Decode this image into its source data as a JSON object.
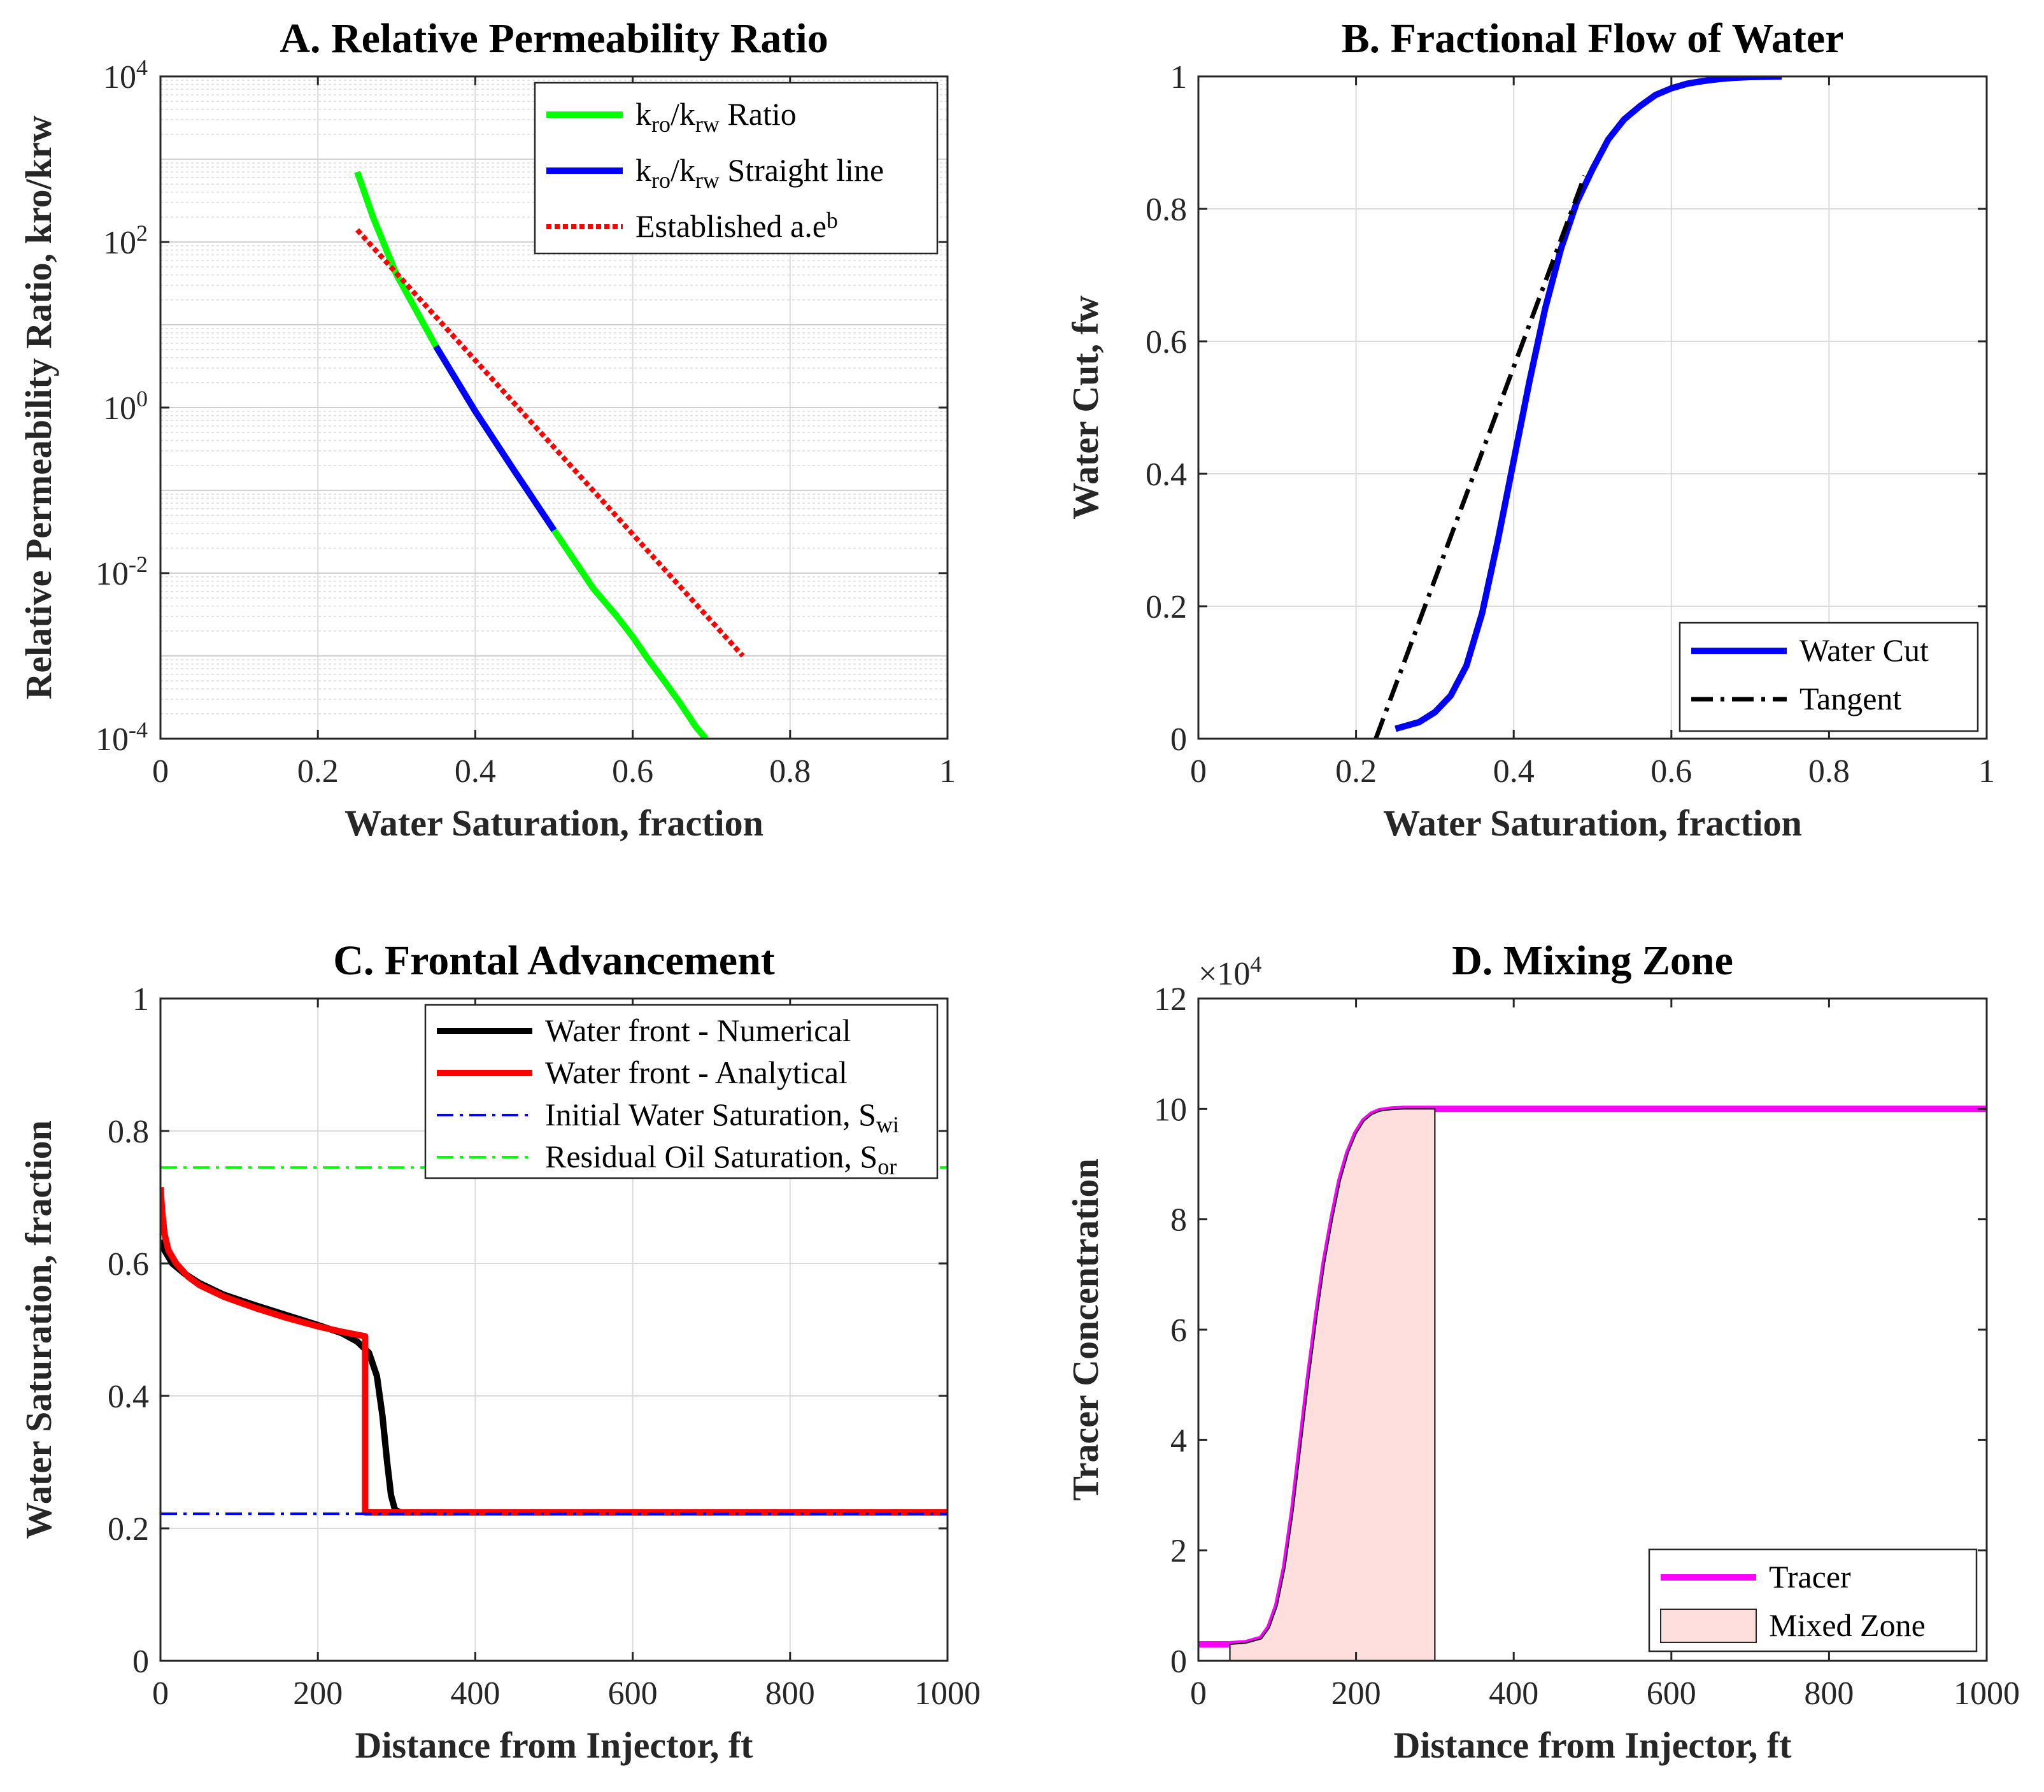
{
  "chart_data": [
    {
      "id": "A",
      "type": "line",
      "title": "A. Relative Permeability Ratio",
      "xlabel": "Water Saturation, fraction",
      "ylabel": "Relative Permeability Ratio, kro/krw",
      "xlim": [
        0,
        1
      ],
      "ylim": [
        0.0001,
        10000
      ],
      "yscale": "log",
      "grid": true,
      "minor_grid": true,
      "legend_position": "top-right",
      "xticks": [
        0,
        0.2,
        0.4,
        0.6,
        0.8,
        1
      ],
      "xtick_labels": [
        "0",
        "0.2",
        "0.4",
        "0.6",
        "0.8",
        "1"
      ],
      "yticks": [
        0.0001,
        0.01,
        1,
        100,
        10000
      ],
      "ytick_labels": [
        {
          "base": "10",
          "exp": "-4"
        },
        {
          "base": "10",
          "exp": "-2"
        },
        {
          "base": "10",
          "exp": "0"
        },
        {
          "base": "10",
          "exp": "2"
        },
        {
          "base": "10",
          "exp": "4"
        }
      ],
      "series": [
        {
          "name": "kro/krw Ratio",
          "legend_parts": [
            {
              "t": "k"
            },
            {
              "t": "ro",
              "sub": true
            },
            {
              "t": "/k"
            },
            {
              "t": "rw",
              "sub": true
            },
            {
              "t": " Ratio"
            }
          ],
          "color": "#00ff00",
          "style": "solid",
          "x": [
            0.25,
            0.27,
            0.3,
            0.35,
            0.4,
            0.45,
            0.5,
            0.55,
            0.58,
            0.6,
            0.62,
            0.64,
            0.66,
            0.68,
            0.693
          ],
          "y": [
            700,
            200,
            40,
            5.5,
            0.9,
            0.17,
            0.033,
            0.0065,
            0.003,
            0.0017,
            0.0009,
            0.0005,
            0.00027,
            0.00014,
            0.0001
          ]
        },
        {
          "name": "kro/krw Straight line",
          "legend_parts": [
            {
              "t": "k"
            },
            {
              "t": "ro",
              "sub": true
            },
            {
              "t": "/k"
            },
            {
              "t": "rw",
              "sub": true
            },
            {
              "t": " Straight line"
            }
          ],
          "color": "#0000ff",
          "style": "solid",
          "x": [
            0.35,
            0.4,
            0.45,
            0.5
          ],
          "y": [
            5.5,
            0.9,
            0.17,
            0.033
          ]
        },
        {
          "name": "Established a.e^b",
          "legend_parts": [
            {
              "t": "Established a.e"
            },
            {
              "t": "b",
              "sup": true
            }
          ],
          "color": "#ff0000",
          "style": "dotted",
          "x": [
            0.25,
            0.74
          ],
          "y": [
            140,
            0.001
          ]
        }
      ]
    },
    {
      "id": "B",
      "type": "line",
      "title": "B. Fractional Flow of Water",
      "xlabel": "Water Saturation, fraction",
      "ylabel": "Water Cut, fw",
      "xlim": [
        0,
        1
      ],
      "ylim": [
        0,
        1
      ],
      "grid": true,
      "legend_position": "bottom-right",
      "xticks": [
        0,
        0.2,
        0.4,
        0.6,
        0.8,
        1
      ],
      "xtick_labels": [
        "0",
        "0.2",
        "0.4",
        "0.6",
        "0.8",
        "1"
      ],
      "yticks": [
        0,
        0.2,
        0.4,
        0.6,
        0.8,
        1
      ],
      "ytick_labels": [
        "0",
        "0.2",
        "0.4",
        "0.6",
        "0.8",
        "1"
      ],
      "series": [
        {
          "name": "Water Cut",
          "legend_parts": [
            {
              "t": "Water Cut"
            }
          ],
          "color": "#0000ff",
          "style": "solid",
          "x": [
            0.25,
            0.28,
            0.3,
            0.32,
            0.34,
            0.36,
            0.38,
            0.4,
            0.42,
            0.44,
            0.46,
            0.48,
            0.5,
            0.52,
            0.54,
            0.56,
            0.58,
            0.6,
            0.62,
            0.64,
            0.66,
            0.68,
            0.7,
            0.74
          ],
          "y": [
            0.015,
            0.025,
            0.04,
            0.065,
            0.11,
            0.19,
            0.3,
            0.42,
            0.54,
            0.65,
            0.74,
            0.81,
            0.86,
            0.905,
            0.935,
            0.955,
            0.972,
            0.982,
            0.989,
            0.993,
            0.996,
            0.998,
            0.999,
            1.0
          ]
        },
        {
          "name": "Tangent",
          "legend_parts": [
            {
              "t": "Tangent"
            }
          ],
          "color": "#000000",
          "style": "dashdot",
          "x": [
            0.225,
            0.49
          ],
          "y": [
            0.0,
            0.85
          ]
        }
      ]
    },
    {
      "id": "C",
      "type": "line",
      "title": "C. Frontal Advancement",
      "xlabel": "Distance from Injector, ft",
      "ylabel": "Water Saturation, fraction",
      "xlim": [
        0,
        1000
      ],
      "ylim": [
        0,
        1
      ],
      "grid": true,
      "legend_position": "top-right",
      "xticks": [
        0,
        200,
        400,
        600,
        800,
        1000
      ],
      "xtick_labels": [
        "0",
        "200",
        "400",
        "600",
        "800",
        "1000"
      ],
      "yticks": [
        0,
        0.2,
        0.4,
        0.6,
        0.8,
        1
      ],
      "ytick_labels": [
        "0",
        "0.2",
        "0.4",
        "0.6",
        "0.8",
        "1"
      ],
      "series": [
        {
          "name": "Water front - Numerical",
          "legend_parts": [
            {
              "t": "Water front - Numerical"
            }
          ],
          "color": "#000000",
          "style": "solid",
          "x": [
            0,
            5,
            15,
            30,
            50,
            80,
            120,
            160,
            200,
            230,
            250,
            265,
            275,
            282,
            288,
            293,
            298,
            305,
            315,
            1000
          ],
          "y": [
            0.635,
            0.62,
            0.6,
            0.585,
            0.57,
            0.553,
            0.537,
            0.522,
            0.507,
            0.495,
            0.482,
            0.465,
            0.43,
            0.37,
            0.3,
            0.25,
            0.228,
            0.224,
            0.224,
            0.224
          ]
        },
        {
          "name": "Water front - Analytical",
          "legend_parts": [
            {
              "t": "Water front - Analytical"
            }
          ],
          "color": "#ff0000",
          "style": "solid",
          "x": [
            0,
            2,
            5,
            10,
            20,
            35,
            50,
            80,
            120,
            160,
            200,
            230,
            260,
            260,
            1000
          ],
          "y": [
            0.715,
            0.68,
            0.645,
            0.62,
            0.6,
            0.58,
            0.567,
            0.55,
            0.533,
            0.518,
            0.505,
            0.497,
            0.49,
            0.224,
            0.224
          ]
        },
        {
          "name": "Initial Water Saturation, Swi",
          "legend_parts": [
            {
              "t": "Initial Water Saturation, S"
            },
            {
              "t": "wi",
              "sub": true
            }
          ],
          "color": "#0000ff",
          "style": "dashdot",
          "x": [
            0,
            1000
          ],
          "y": [
            0.222,
            0.222
          ]
        },
        {
          "name": "Residual Oil Saturation, Sor",
          "legend_parts": [
            {
              "t": "Residual Oil Saturation, S"
            },
            {
              "t": "or",
              "sub": true
            }
          ],
          "color": "#00ff00",
          "style": "dashdot",
          "x": [
            0,
            1000
          ],
          "y": [
            0.745,
            0.745
          ]
        }
      ]
    },
    {
      "id": "D",
      "type": "area",
      "title": "D. Mixing Zone",
      "xlabel": "Distance from Injector, ft",
      "ylabel": "Tracer Concentration",
      "xlim": [
        0,
        1000
      ],
      "ylim": [
        0,
        120000
      ],
      "grid": false,
      "legend_position": "bottom-right",
      "y_multiplier": {
        "base": "×10",
        "exp": "4"
      },
      "xticks": [
        0,
        200,
        400,
        600,
        800,
        1000
      ],
      "xtick_labels": [
        "0",
        "200",
        "400",
        "600",
        "800",
        "1000"
      ],
      "yticks": [
        0,
        20000,
        40000,
        60000,
        80000,
        100000,
        120000
      ],
      "ytick_labels": [
        "0",
        "2",
        "4",
        "6",
        "8",
        "10",
        "12"
      ],
      "series": [
        {
          "name": "Tracer",
          "legend_parts": [
            {
              "t": "Tracer"
            }
          ],
          "color": "#ff00ff",
          "style": "solid",
          "x": [
            0,
            40,
            60,
            80,
            90,
            100,
            110,
            120,
            130,
            140,
            150,
            160,
            170,
            180,
            190,
            200,
            210,
            220,
            230,
            245,
            260,
            300,
            1000
          ],
          "y": [
            3000,
            3000,
            3200,
            4000,
            6000,
            10000,
            17000,
            27000,
            39000,
            51000,
            62000,
            72000,
            80000,
            87000,
            92000,
            95500,
            97800,
            99000,
            99600,
            99900,
            100000,
            100000,
            100000
          ]
        },
        {
          "name": "Mixed Zone",
          "legend_parts": [
            {
              "t": "Mixed Zone"
            }
          ],
          "color": "#ffdede",
          "style": "area",
          "x_start": 40,
          "x_end": 300
        }
      ]
    }
  ]
}
